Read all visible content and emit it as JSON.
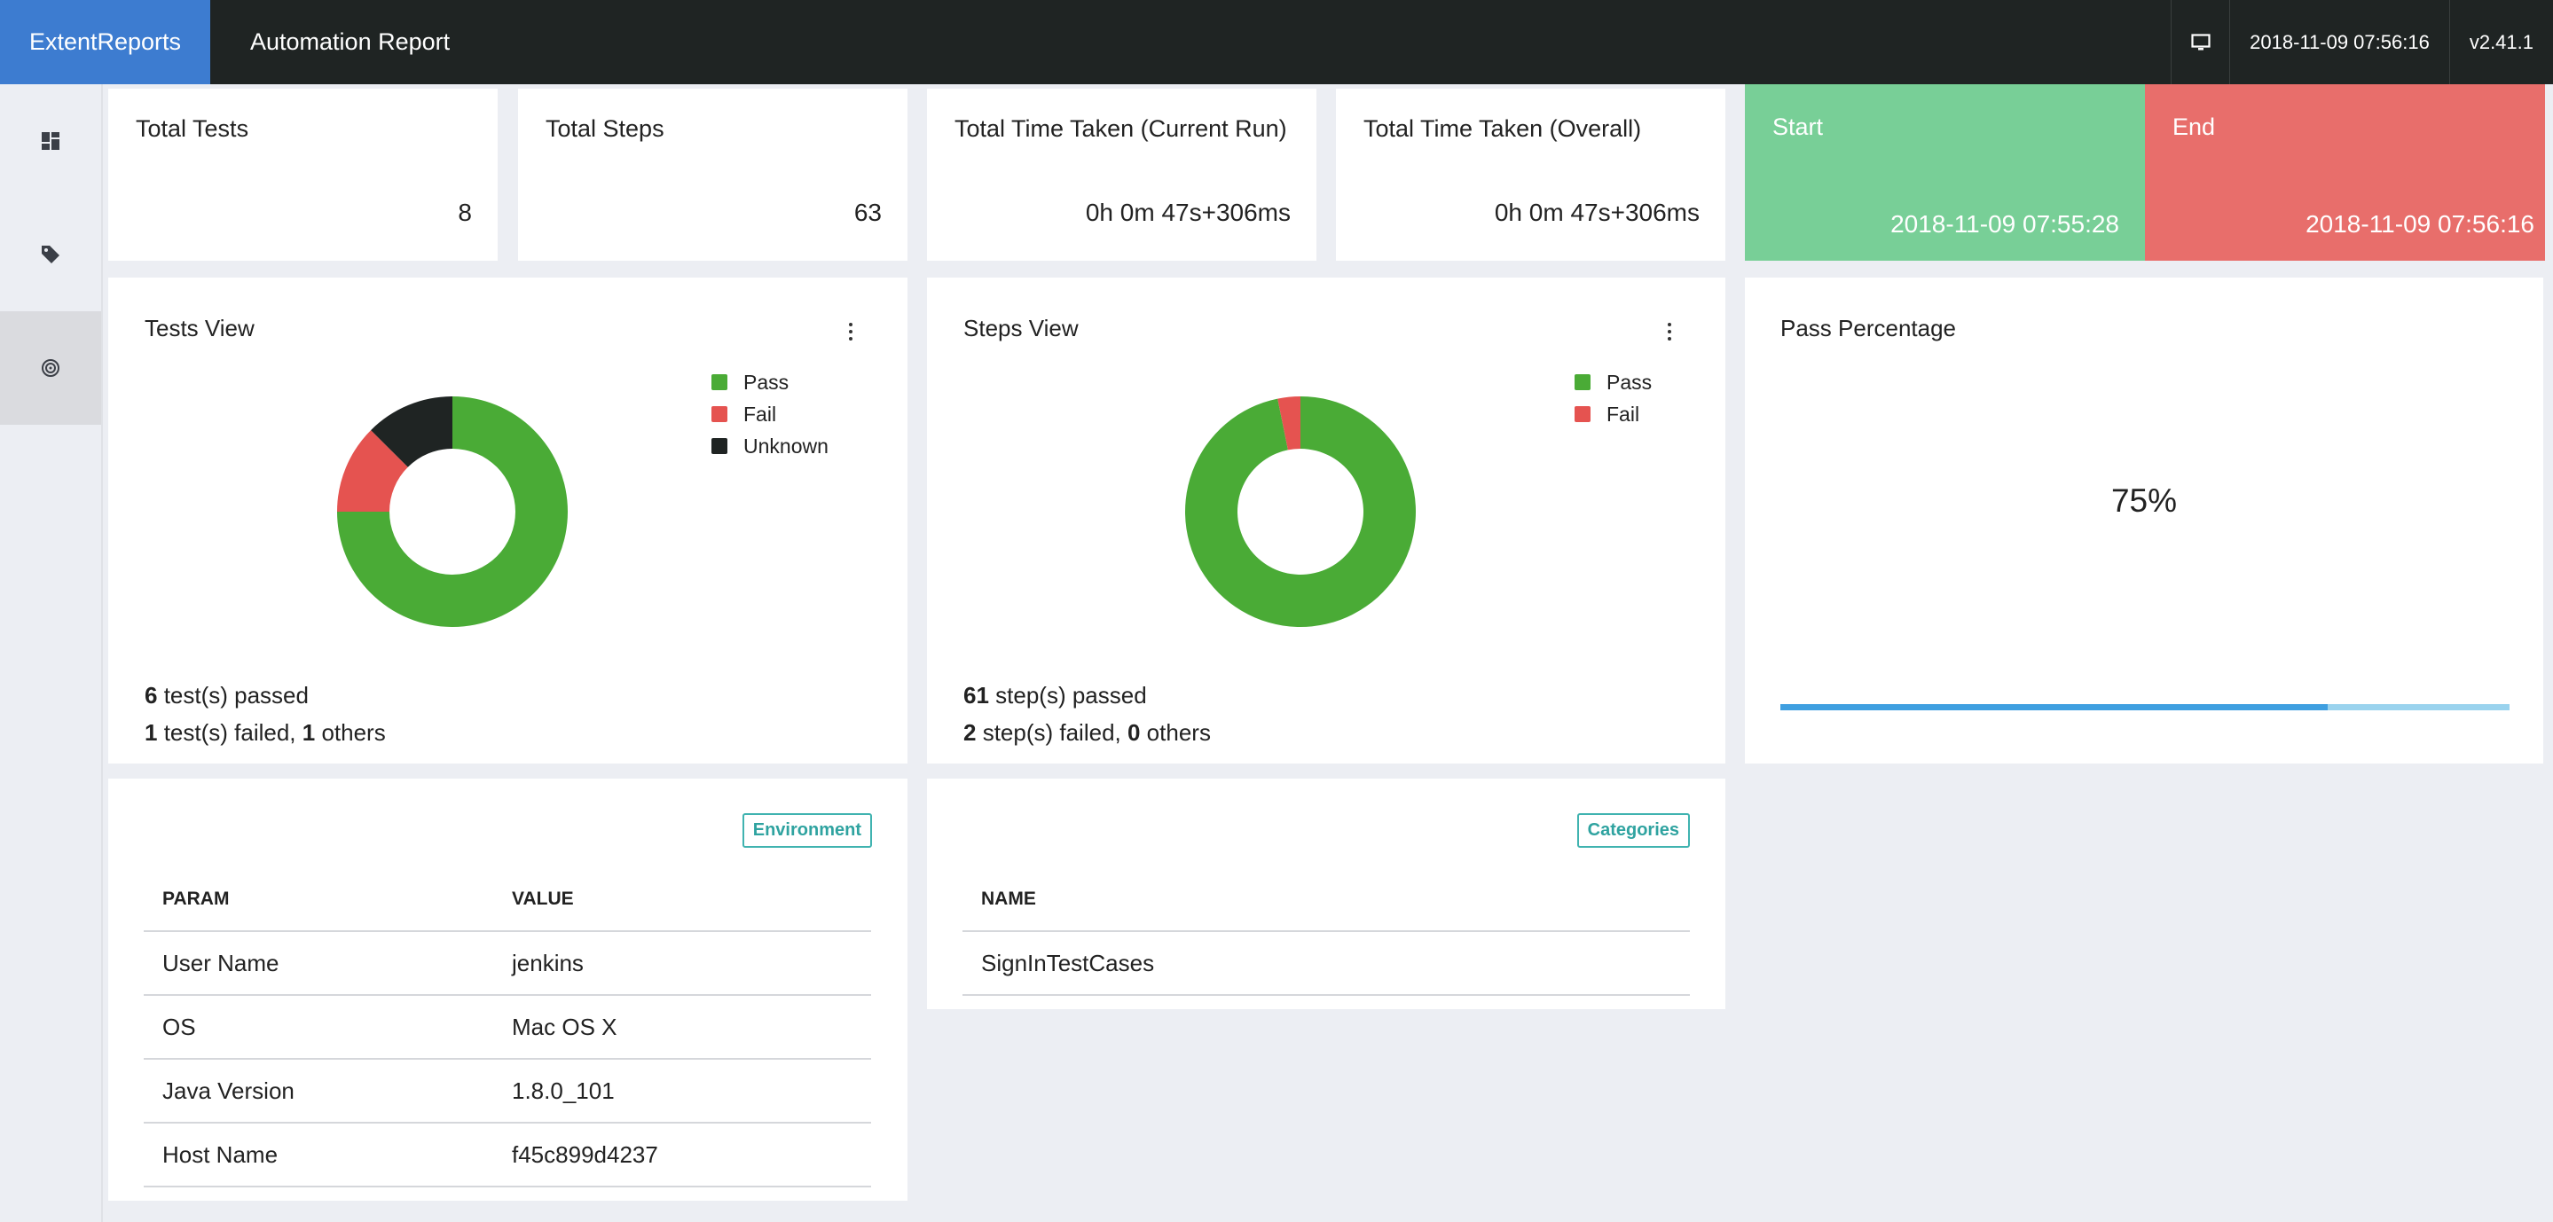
{
  "header": {
    "brand": "ExtentReports",
    "report_name": "Automation Report",
    "monitor_icon": "monitor-icon",
    "timestamp": "2018-11-09 07:56:16",
    "version": "v2.41.1"
  },
  "sidebar": {
    "items": [
      {
        "icon": "dashboard-icon"
      },
      {
        "icon": "tag-icon"
      },
      {
        "icon": "fingerprint-icon"
      }
    ]
  },
  "stats": {
    "total_tests": {
      "label": "Total Tests",
      "value": "8"
    },
    "total_steps": {
      "label": "Total Steps",
      "value": "63"
    },
    "time_current": {
      "label": "Total Time Taken (Current Run)",
      "value": "0h 0m 47s+306ms"
    },
    "time_overall": {
      "label": "Total Time Taken (Overall)",
      "value": "0h 0m 47s+306ms"
    },
    "start": {
      "label": "Start",
      "value": "2018-11-09 07:55:28"
    },
    "end": {
      "label": "End",
      "value": "2018-11-09 07:56:16"
    }
  },
  "colors": {
    "pass": "#4aab36",
    "fail": "#e55350",
    "unknown": "#1f2423",
    "start_bg": "#78cf97",
    "end_bg": "#e86e6b",
    "brand_bg": "#3d7cd0",
    "progress_fill": "#3f9fe0",
    "progress_track": "#9ad3ee"
  },
  "tests_view": {
    "title": "Tests View",
    "legend": [
      "Pass",
      "Fail",
      "Unknown"
    ],
    "passed_count": "6",
    "passed_text": " test(s) passed",
    "failed_count": "1",
    "failed_text": " test(s) failed, ",
    "others_count": "1",
    "others_text": " others"
  },
  "steps_view": {
    "title": "Steps View",
    "legend": [
      "Pass",
      "Fail"
    ],
    "passed_count": "61",
    "passed_text": " step(s) passed",
    "failed_count": "2",
    "failed_text": " step(s) failed, ",
    "others_count": "0",
    "others_text": " others"
  },
  "pass_percentage": {
    "title": "Pass Percentage",
    "value_text": "75%",
    "value": 0.75
  },
  "environment": {
    "badge": "Environment",
    "columns": [
      "PARAM",
      "VALUE"
    ],
    "rows": [
      {
        "param": "User Name",
        "value": "jenkins"
      },
      {
        "param": "OS",
        "value": "Mac OS X"
      },
      {
        "param": "Java Version",
        "value": "1.8.0_101"
      },
      {
        "param": "Host Name",
        "value": "f45c899d4237"
      }
    ]
  },
  "categories": {
    "badge": "Categories",
    "columns": [
      "NAME"
    ],
    "rows": [
      {
        "name": "SignInTestCases"
      }
    ]
  },
  "chart_data": [
    {
      "type": "pie",
      "title": "Tests View",
      "categories": [
        "Pass",
        "Fail",
        "Unknown"
      ],
      "values": [
        6,
        1,
        1
      ]
    },
    {
      "type": "pie",
      "title": "Steps View",
      "categories": [
        "Pass",
        "Fail"
      ],
      "values": [
        61,
        2
      ]
    }
  ]
}
